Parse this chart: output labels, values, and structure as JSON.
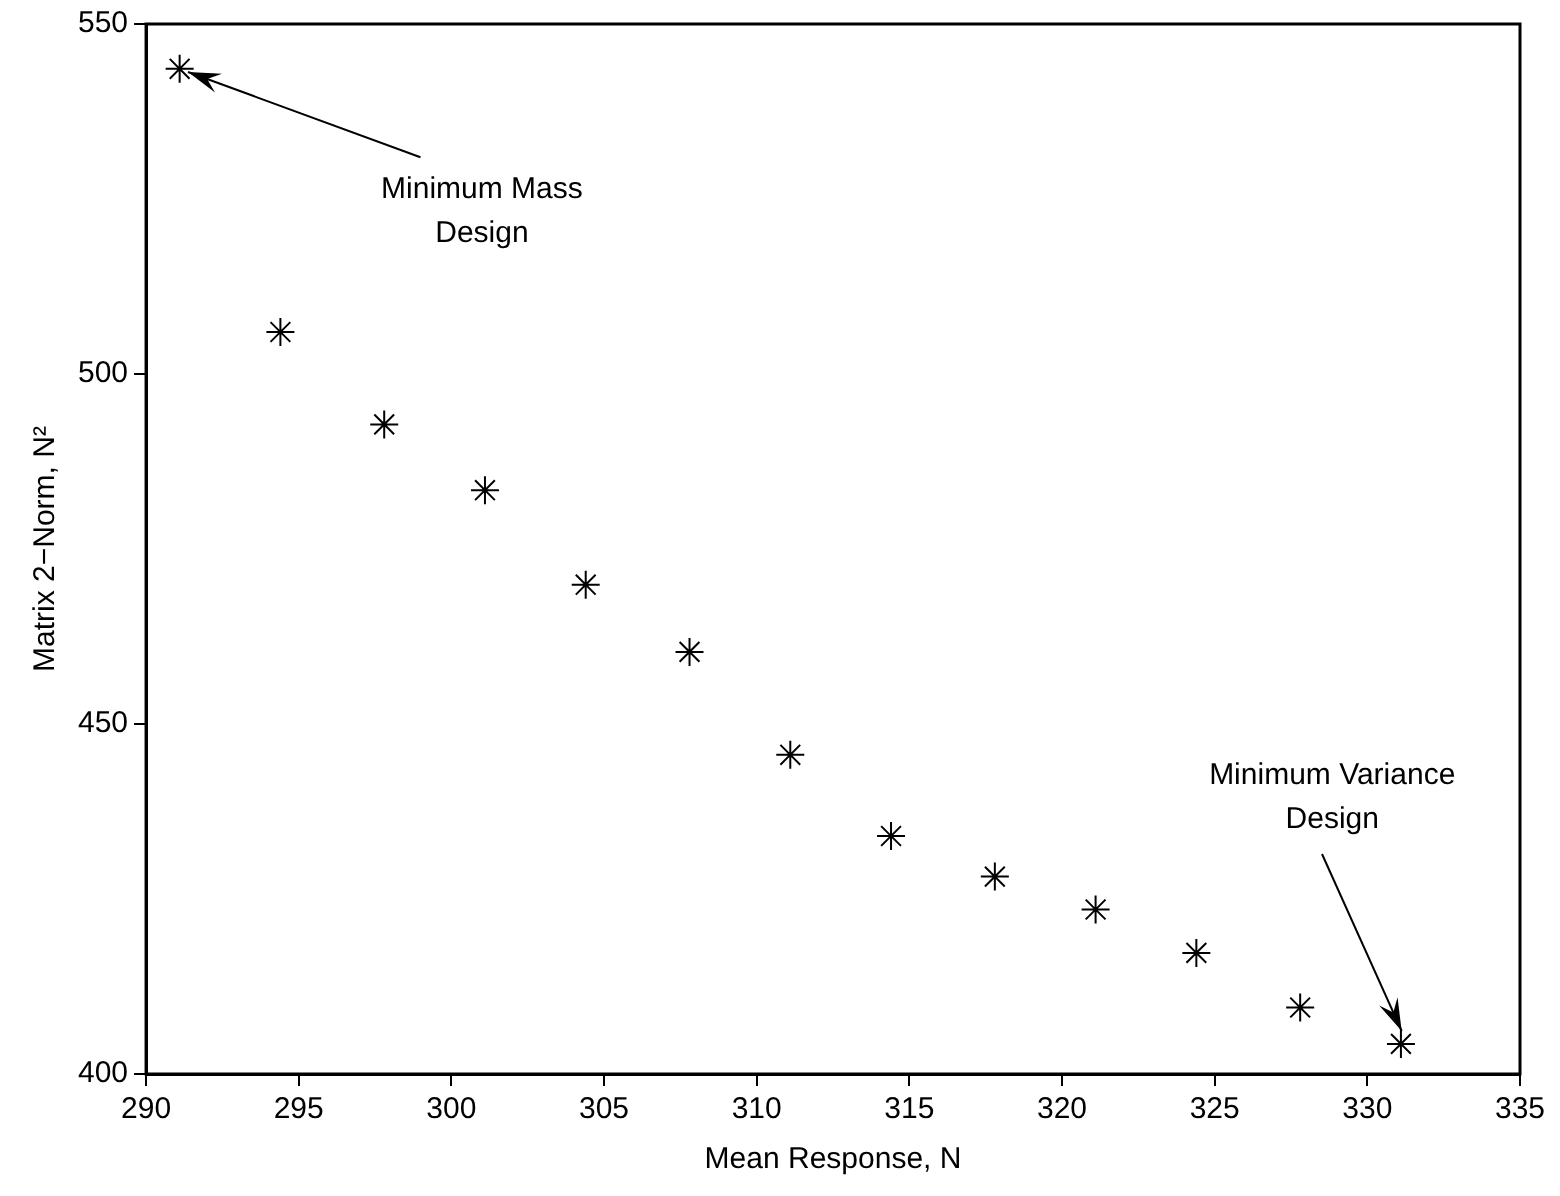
{
  "chart_data": {
    "type": "scatter",
    "xlabel": "Mean Response, N",
    "ylabel": "Matrix 2−Norm, N²",
    "x": [
      291.1,
      294.4,
      297.8,
      301.1,
      304.4,
      307.8,
      311.1,
      314.4,
      317.8,
      321.1,
      324.4,
      327.8,
      331.1
    ],
    "series": [
      {
        "color": "#000000",
        "values": [
          543.6,
          506.0,
          492.8,
          483.4,
          469.9,
          460.3,
          445.6,
          434.0,
          428.2,
          423.5,
          417.3,
          409.5,
          404.3
        ]
      }
    ],
    "xlim": [
      290,
      335
    ],
    "xticks": [
      290,
      295,
      300,
      305,
      310,
      315,
      320,
      325,
      330,
      335
    ],
    "ylim": [
      400,
      550
    ],
    "yticks": [
      400,
      450,
      500,
      550
    ],
    "marker": "cross",
    "grid": false,
    "legend": false,
    "annotations": [
      {
        "text": "Minimum Mass\nDesign",
        "x": 291.1,
        "y": 543.6
      },
      {
        "text": "Minimum Variance\nDesign",
        "x": 331.1,
        "y": 404.3
      }
    ]
  }
}
